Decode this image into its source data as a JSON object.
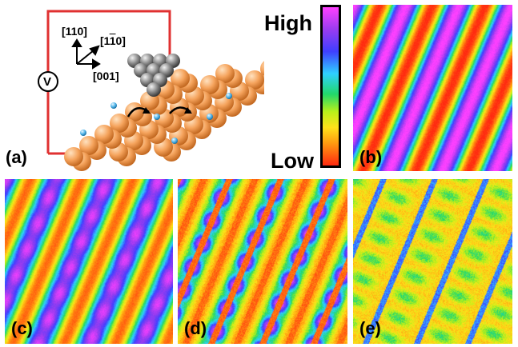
{
  "colorbar": {
    "high_label": "High",
    "low_label": "Low"
  },
  "schematic": {
    "dir_110": "[110]",
    "dir_1m10_open": "[1",
    "dir_1m10_bar": "1",
    "dir_1m10_close": "0]",
    "dir_001": "[001]",
    "meter_symbol": "V"
  },
  "panels": [
    {
      "id": "a",
      "label": "(a)",
      "kind": "schematic"
    },
    {
      "id": "b",
      "label": "(b)",
      "kind": "stripes"
    },
    {
      "id": "c",
      "label": "(c)",
      "kind": "stripes"
    },
    {
      "id": "d",
      "label": "(d)",
      "kind": "stripes-blobs"
    },
    {
      "id": "e",
      "label": "(e)",
      "kind": "stripes-blobs-noisy"
    }
  ],
  "colors": {
    "circuit_wire": "#e03131",
    "atom_orange": "#f5a35c",
    "adatom_blue": "#4fb3e8",
    "tip_gray": "#8a8a8a"
  }
}
